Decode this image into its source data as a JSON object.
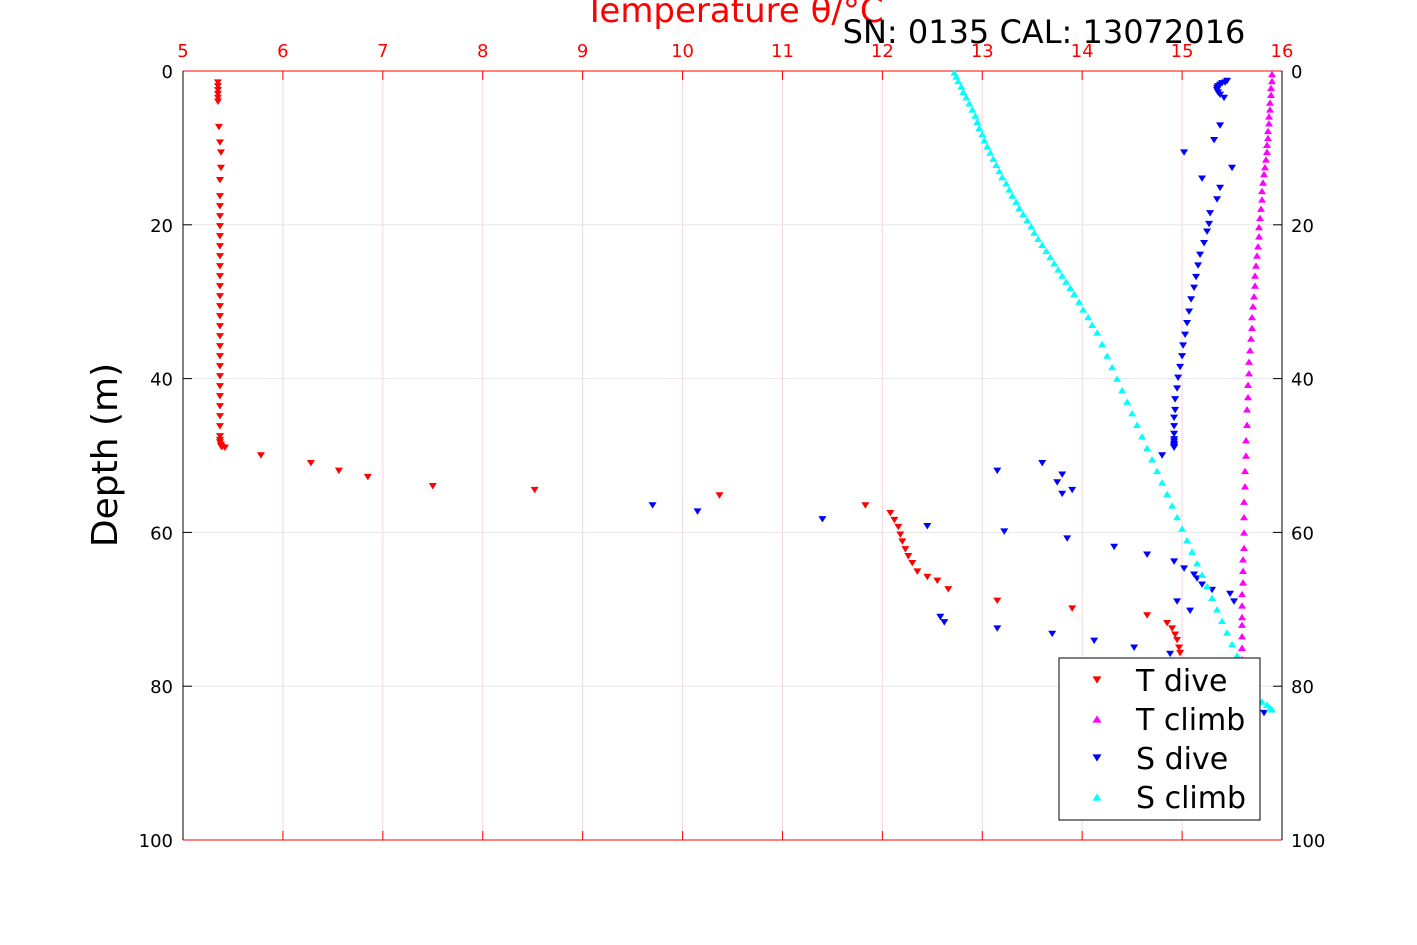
{
  "chart_data": {
    "type": "scatter",
    "title": "Temperature θ/°C",
    "subtitle": "SN: 0135  CAL: 13072016",
    "ylabel": "Depth (m)",
    "xlim": [
      5,
      16
    ],
    "ylim": [
      0,
      100
    ],
    "y_reversed": true,
    "x_ticks": [
      "5",
      "6",
      "7",
      "8",
      "9",
      "10",
      "11",
      "12",
      "13",
      "14",
      "15",
      "16"
    ],
    "y_ticks": [
      "0",
      "20",
      "40",
      "60",
      "80",
      "100"
    ],
    "grid": true,
    "legend_position": "bottom-right",
    "colors": {
      "axis_top": "#ff0000",
      "axis": "#000000",
      "grid": "#e6e6e6"
    },
    "series": [
      {
        "name": "T dive",
        "color": "#ff0000",
        "marker": "triangle-down",
        "x": [
          5.35,
          5.35,
          5.35,
          5.35,
          5.35,
          5.35,
          5.36,
          5.37,
          5.38,
          5.38,
          5.37,
          5.37,
          5.37,
          5.37,
          5.37,
          5.37,
          5.37,
          5.37,
          5.37,
          5.37,
          5.37,
          5.37,
          5.37,
          5.37,
          5.37,
          5.37,
          5.37,
          5.37,
          5.37,
          5.37,
          5.37,
          5.37,
          5.37,
          5.37,
          5.37,
          5.37,
          5.37,
          5.37,
          5.38,
          5.38,
          5.39,
          5.42,
          5.78,
          6.28,
          6.56,
          6.85,
          7.5,
          8.52,
          10.37,
          11.83,
          12.08,
          12.12,
          12.16,
          12.18,
          12.2,
          12.23,
          12.26,
          12.3,
          12.35,
          12.45,
          12.55,
          12.66,
          13.15,
          13.9,
          14.65,
          14.85,
          14.9,
          14.93,
          14.95,
          14.97,
          14.98
        ],
        "y": [
          1.5,
          2.0,
          2.5,
          3.0,
          3.5,
          4.0,
          7.3,
          9.3,
          10.6,
          12.6,
          14.2,
          16.3,
          17.6,
          18.9,
          20.2,
          21.5,
          22.8,
          24.1,
          25.4,
          26.7,
          28.0,
          29.3,
          30.6,
          31.9,
          33.2,
          34.5,
          35.8,
          37.1,
          38.4,
          39.7,
          41.0,
          42.3,
          43.6,
          44.9,
          46.2,
          47.5,
          48.0,
          48.3,
          48.6,
          48.8,
          48.9,
          49.0,
          50.0,
          51.0,
          52.0,
          52.8,
          54.0,
          54.5,
          55.2,
          56.5,
          57.5,
          58.4,
          59.3,
          60.3,
          61.2,
          62.2,
          63.1,
          64.0,
          65.1,
          65.8,
          66.3,
          67.4,
          68.9,
          69.9,
          70.8,
          71.8,
          72.5,
          73.3,
          74.0,
          75.0,
          75.7
        ]
      },
      {
        "name": "T climb",
        "color": "#ff00ff",
        "marker": "triangle-up",
        "x": [
          15.9,
          15.9,
          15.89,
          15.89,
          15.88,
          15.88,
          15.87,
          15.87,
          15.86,
          15.86,
          15.85,
          15.85,
          15.84,
          15.83,
          15.82,
          15.81,
          15.8,
          15.8,
          15.79,
          15.78,
          15.77,
          15.77,
          15.76,
          15.75,
          15.74,
          15.73,
          15.73,
          15.72,
          15.71,
          15.7,
          15.7,
          15.69,
          15.68,
          15.67,
          15.67,
          15.66,
          15.66,
          15.65,
          15.65,
          15.64,
          15.64,
          15.63,
          15.63,
          15.62,
          15.62,
          15.62,
          15.62,
          15.61,
          15.61,
          15.61,
          15.6,
          15.6,
          15.6,
          15.6,
          15.6,
          15.6,
          15.6,
          15.6,
          15.59,
          15.59
        ],
        "y": [
          0.4,
          1.3,
          2.2,
          3.1,
          4.1,
          5.0,
          5.9,
          6.8,
          7.8,
          8.7,
          9.6,
          10.5,
          11.5,
          12.5,
          13.4,
          14.5,
          15.6,
          16.7,
          17.9,
          19.1,
          20.3,
          21.5,
          22.8,
          24.0,
          25.3,
          26.6,
          27.9,
          29.3,
          30.6,
          32.0,
          33.4,
          34.8,
          36.3,
          37.8,
          39.3,
          40.8,
          42.4,
          44.0,
          46.0,
          48.0,
          50.0,
          52.0,
          54.0,
          56.0,
          58.0,
          60.0,
          62.0,
          63.5,
          65.0,
          66.5,
          68.0,
          69.5,
          71.0,
          72.0,
          73.5,
          75.0,
          76.5,
          78.0,
          79.5,
          80.0
        ]
      },
      {
        "name": "S dive",
        "color": "#0000ff",
        "marker": "triangle-down",
        "x": [
          15.45,
          15.43,
          15.4,
          15.38,
          15.36,
          15.35,
          15.35,
          15.36,
          15.38,
          15.42,
          15.38,
          15.02,
          15.32,
          15.2,
          15.5,
          15.38,
          15.35,
          15.28,
          15.27,
          15.25,
          15.22,
          15.18,
          15.16,
          15.14,
          15.12,
          15.09,
          15.07,
          15.05,
          15.03,
          15.01,
          15.0,
          14.98,
          14.96,
          14.95,
          14.93,
          14.93,
          14.92,
          14.92,
          14.92,
          14.92,
          14.92,
          14.92,
          14.92,
          14.92,
          14.92,
          14.8,
          13.6,
          13.8,
          13.75,
          13.8,
          13.9,
          9.7,
          10.15,
          11.4,
          12.45,
          12.58,
          12.62,
          13.15,
          13.15,
          13.22,
          13.7,
          13.85,
          14.12,
          14.32,
          14.52,
          14.65,
          14.88,
          14.92,
          14.95,
          15.02,
          15.08,
          15.12,
          15.15,
          15.2,
          15.3,
          15.48,
          15.52,
          15.62,
          15.82
        ],
        "y": [
          1.3,
          1.5,
          1.6,
          1.8,
          2.0,
          2.2,
          2.5,
          2.8,
          3.1,
          3.5,
          7.1,
          10.6,
          9.0,
          14.0,
          12.6,
          15.2,
          16.7,
          18.5,
          19.9,
          20.9,
          22.4,
          23.9,
          25.3,
          26.8,
          28.2,
          29.7,
          31.3,
          32.8,
          34.3,
          35.7,
          37.1,
          38.5,
          39.9,
          41.3,
          42.7,
          44.1,
          45.1,
          46.2,
          47.2,
          47.9,
          48.2,
          48.5,
          48.7,
          48.9,
          49.0,
          50.0,
          51.0,
          52.5,
          53.5,
          55.0,
          54.5,
          56.5,
          57.3,
          58.3,
          59.2,
          71.0,
          71.7,
          52.0,
          72.5,
          59.9,
          73.2,
          60.8,
          74.1,
          61.9,
          75.0,
          62.9,
          75.8,
          63.8,
          69.0,
          64.7,
          70.2,
          65.5,
          66.0,
          66.8,
          67.5,
          68.0,
          69.0,
          77.0,
          83.5
        ]
      },
      {
        "name": "S climb",
        "color": "#00ffff",
        "marker": "triangle-up",
        "x": [
          12.72,
          12.74,
          12.76,
          12.79,
          12.81,
          12.84,
          12.87,
          12.9,
          12.93,
          12.95,
          12.97,
          13.0,
          13.02,
          13.05,
          13.08,
          13.11,
          13.14,
          13.17,
          13.2,
          13.24,
          13.27,
          13.3,
          13.34,
          13.37,
          13.41,
          13.45,
          13.49,
          13.52,
          13.56,
          13.6,
          13.64,
          13.68,
          13.72,
          13.76,
          13.8,
          13.84,
          13.88,
          13.92,
          13.97,
          14.01,
          14.06,
          14.1,
          14.15,
          14.2,
          14.25,
          14.3,
          14.35,
          14.4,
          14.45,
          14.5,
          14.55,
          14.6,
          14.65,
          14.7,
          14.75,
          14.8,
          14.85,
          14.9,
          14.95,
          15.0,
          15.05,
          15.1,
          15.15,
          15.2,
          15.25,
          15.3,
          15.35,
          15.4,
          15.45,
          15.5,
          15.55,
          15.58,
          15.6,
          15.62,
          15.65,
          15.7,
          15.75,
          15.8,
          15.85,
          15.88,
          15.9
        ],
        "y": [
          0.2,
          0.7,
          1.3,
          2.0,
          2.7,
          3.4,
          4.2,
          5.0,
          5.8,
          6.6,
          7.4,
          8.2,
          9.0,
          9.8,
          10.6,
          11.4,
          12.2,
          13.0,
          13.8,
          14.6,
          15.4,
          16.2,
          17.0,
          17.8,
          18.6,
          19.4,
          20.2,
          21.0,
          21.8,
          22.6,
          23.4,
          24.2,
          25.0,
          25.8,
          26.6,
          27.4,
          28.2,
          29.0,
          30.0,
          31.0,
          32.0,
          33.0,
          34.0,
          35.5,
          37.0,
          38.5,
          40.0,
          41.5,
          43.0,
          44.5,
          46.0,
          47.5,
          49.0,
          50.5,
          52.0,
          53.5,
          55.0,
          56.5,
          58.0,
          59.5,
          61.0,
          62.5,
          64.0,
          65.5,
          67.0,
          68.5,
          70.0,
          71.5,
          73.0,
          74.5,
          76.0,
          77.0,
          78.0,
          79.0,
          80.0,
          80.8,
          81.5,
          82.0,
          82.4,
          82.8,
          83.0
        ]
      }
    ]
  }
}
